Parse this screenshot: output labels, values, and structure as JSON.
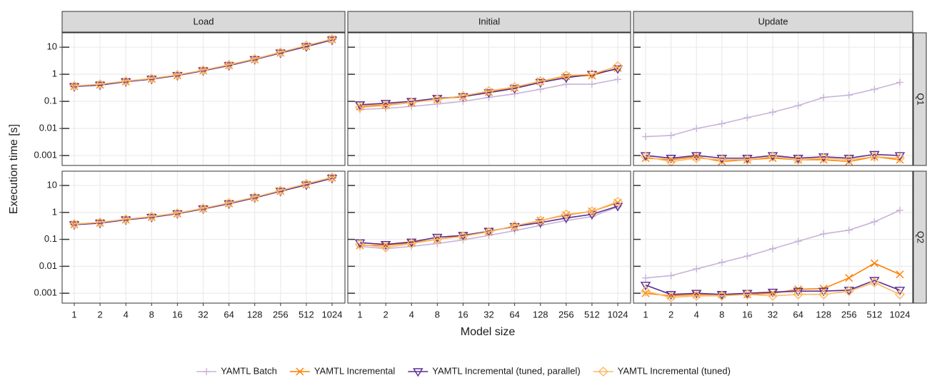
{
  "chart_data": {
    "type": "line",
    "x_label": "Model size",
    "y_label": "Execution time [s]",
    "log_y": true,
    "grid": true,
    "legend_position": "bottom",
    "columns": [
      "Load",
      "Initial",
      "Update"
    ],
    "rows": [
      "Q1",
      "Q2"
    ],
    "categories": [
      "1",
      "2",
      "4",
      "8",
      "16",
      "32",
      "64",
      "128",
      "256",
      "512",
      "1024"
    ],
    "ylim": [
      0.00043,
      34
    ],
    "yticks": [
      0.001,
      0.01,
      0.1,
      1,
      10
    ],
    "series": [
      {
        "name": "YAMTL Batch",
        "color": "#c9b3d9",
        "marker": "plus"
      },
      {
        "name": "YAMTL Incremental",
        "color": "#ff7f00",
        "marker": "cross"
      },
      {
        "name": "YAMTL Incremental (tuned, parallel)",
        "color": "#5a2d91",
        "marker": "triangle-down"
      },
      {
        "name": "YAMTL Incremental (tuned)",
        "color": "#fdb863",
        "marker": "diamond"
      }
    ],
    "panels": [
      [
        [
          [
            0.37,
            0.42,
            0.55,
            0.68,
            0.92,
            1.4,
            2.2,
            3.6,
            6.3,
            11,
            19
          ],
          [
            0.36,
            0.41,
            0.54,
            0.67,
            0.9,
            1.38,
            2.15,
            3.5,
            6.2,
            10.8,
            19.5
          ],
          [
            0.35,
            0.4,
            0.53,
            0.66,
            0.9,
            1.35,
            2.1,
            3.5,
            6.1,
            10.5,
            18.5
          ],
          [
            0.37,
            0.43,
            0.56,
            0.7,
            0.95,
            1.42,
            2.25,
            3.7,
            6.5,
            11.5,
            20
          ]
        ],
        [
          [
            0.05,
            0.055,
            0.065,
            0.08,
            0.1,
            0.14,
            0.19,
            0.28,
            0.43,
            0.43,
            0.65
          ],
          [
            0.065,
            0.075,
            0.09,
            0.12,
            0.15,
            0.22,
            0.32,
            0.55,
            0.85,
            0.9,
            1.7
          ],
          [
            0.075,
            0.085,
            0.1,
            0.13,
            0.15,
            0.21,
            0.3,
            0.5,
            0.75,
            1.0,
            1.6
          ],
          [
            0.06,
            0.07,
            0.09,
            0.12,
            0.16,
            0.24,
            0.34,
            0.55,
            0.9,
            1.0,
            2.0
          ]
        ],
        [
          [
            0.005,
            0.0055,
            0.01,
            0.015,
            0.025,
            0.04,
            0.07,
            0.14,
            0.17,
            0.28,
            0.5
          ],
          [
            0.0008,
            0.0007,
            0.0009,
            0.0006,
            0.0007,
            0.0008,
            0.0007,
            0.0007,
            0.0006,
            0.0009,
            0.0007
          ],
          [
            0.001,
            0.0008,
            0.001,
            0.0008,
            0.0008,
            0.001,
            0.0008,
            0.0009,
            0.0008,
            0.0011,
            0.001
          ],
          [
            0.0009,
            0.0006,
            0.0008,
            0.0007,
            0.0007,
            0.0009,
            0.0007,
            0.0008,
            0.0007,
            0.0009,
            0.0008
          ]
        ]
      ],
      [
        [
          [
            0.37,
            0.42,
            0.55,
            0.68,
            0.92,
            1.4,
            2.2,
            3.6,
            6.3,
            11,
            19
          ],
          [
            0.36,
            0.41,
            0.54,
            0.67,
            0.9,
            1.38,
            2.15,
            3.5,
            6.2,
            10.8,
            19.5
          ],
          [
            0.35,
            0.4,
            0.53,
            0.66,
            0.9,
            1.35,
            2.1,
            3.5,
            6.1,
            10.5,
            18.5
          ],
          [
            0.37,
            0.43,
            0.56,
            0.7,
            0.95,
            1.42,
            2.25,
            3.7,
            6.5,
            11.5,
            20
          ]
        ],
        [
          [
            0.055,
            0.045,
            0.055,
            0.07,
            0.095,
            0.14,
            0.21,
            0.33,
            0.5,
            0.7,
            1.6
          ],
          [
            0.06,
            0.06,
            0.075,
            0.1,
            0.14,
            0.2,
            0.3,
            0.5,
            0.8,
            1.1,
            2.3
          ],
          [
            0.075,
            0.065,
            0.08,
            0.12,
            0.14,
            0.2,
            0.3,
            0.42,
            0.62,
            0.85,
            1.7
          ],
          [
            0.065,
            0.05,
            0.07,
            0.1,
            0.13,
            0.19,
            0.32,
            0.5,
            0.85,
            1.1,
            2.5
          ]
        ],
        [
          [
            0.0037,
            0.0045,
            0.008,
            0.014,
            0.024,
            0.045,
            0.085,
            0.16,
            0.22,
            0.45,
            1.2
          ],
          [
            0.001,
            0.0008,
            0.0009,
            0.0009,
            0.0009,
            0.001,
            0.0014,
            0.0015,
            0.0037,
            0.013,
            0.005
          ],
          [
            0.002,
            0.0009,
            0.001,
            0.0009,
            0.001,
            0.0011,
            0.0012,
            0.0012,
            0.0013,
            0.003,
            0.0013
          ],
          [
            0.0012,
            0.0007,
            0.0008,
            0.0008,
            0.0009,
            0.0008,
            0.0009,
            0.0009,
            0.0012,
            0.0025,
            0.0009
          ]
        ]
      ]
    ]
  }
}
